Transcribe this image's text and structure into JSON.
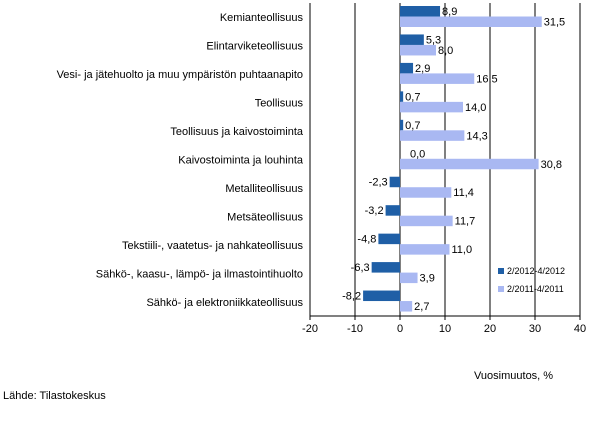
{
  "chart_data": {
    "type": "bar",
    "orientation": "horizontal",
    "categories": [
      "Kemianteollisuus",
      "Elintarviketeollisuus",
      "Vesi- ja jätehuolto ja muu ympäristön puhtaanapito",
      "Teollisuus",
      "Teollisuus ja kaivostoiminta",
      "Kaivostoiminta ja louhinta",
      "Metalliteollisuus",
      "Metsäteollisuus",
      "Tekstiili-, vaatetus- ja nahkateollisuus",
      "Sähkö-, kaasu-, lämpö- ja ilmastointihuolto",
      "Sähkö- ja elektroniikkateollisuus"
    ],
    "series": [
      {
        "name": "2/2012-4/2012",
        "color": "#1f5fa6",
        "values": [
          8.9,
          5.3,
          2.9,
          0.7,
          0.7,
          0.0,
          -2.3,
          -3.2,
          -4.8,
          -6.3,
          -8.2
        ],
        "labels": [
          "8,9",
          "5,3",
          "2,9",
          "0,7",
          "0,7",
          "0,0",
          "-2,3",
          "-3,2",
          "-4,8",
          "-6,3",
          "-8,2"
        ]
      },
      {
        "name": "2/2011-4/2011",
        "color": "#a9b8f2",
        "values": [
          31.5,
          8.0,
          16.5,
          14.0,
          14.3,
          30.8,
          11.4,
          11.7,
          11.0,
          3.9,
          2.7
        ],
        "labels": [
          "31,5",
          "8,0",
          "16,5",
          "14,0",
          "14,3",
          "30,8",
          "11,4",
          "11,7",
          "11,0",
          "3,9",
          "2,7"
        ]
      }
    ],
    "xlim": [
      -20,
      40
    ],
    "xticks": [
      -20,
      -10,
      0,
      10,
      20,
      30,
      40
    ],
    "xtick_labels": [
      "-20",
      "-10",
      "0",
      "10",
      "20",
      "30",
      "40"
    ],
    "xlabel": "Vuosimuutos, %",
    "grid": "vertical",
    "legend": "bottom-right"
  },
  "source": "Lähde: Tilastokeskus"
}
